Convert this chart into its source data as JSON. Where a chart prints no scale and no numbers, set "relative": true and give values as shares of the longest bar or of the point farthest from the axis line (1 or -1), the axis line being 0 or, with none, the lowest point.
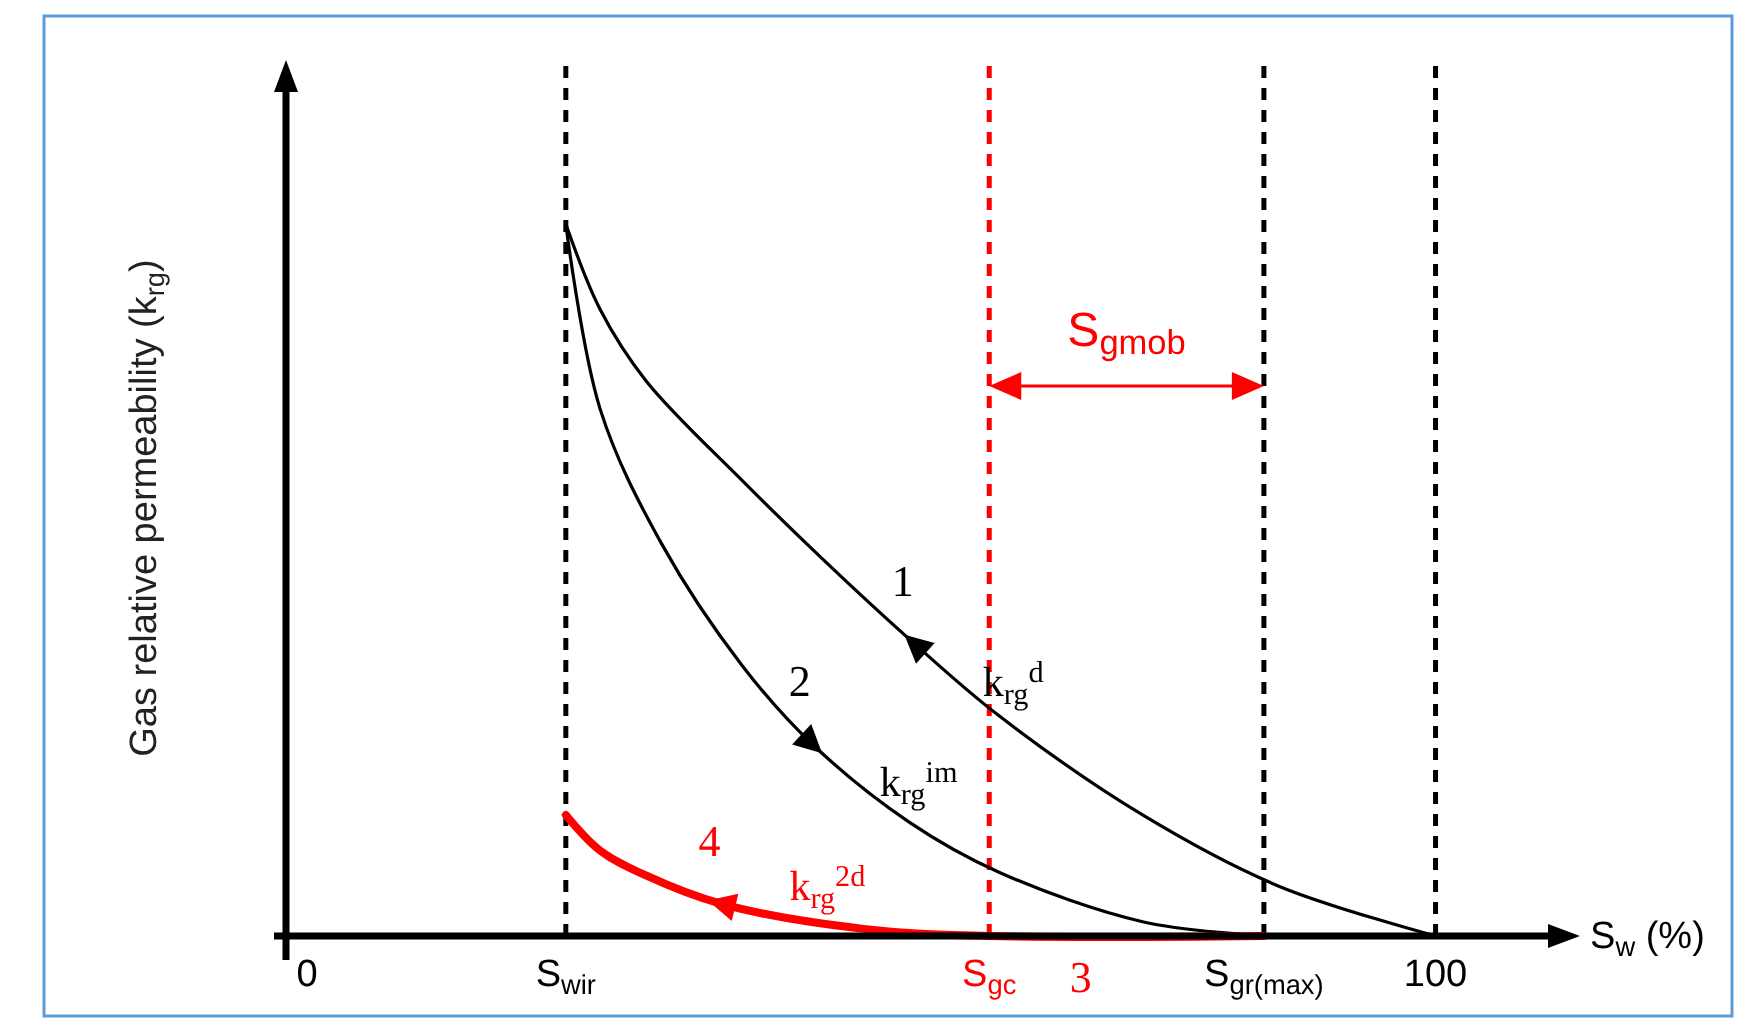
{
  "chart_data": {
    "type": "line",
    "relative": true,
    "xlabel": "S$_{w}$ (%)",
    "ylabel": "Gas relative permeability (k$_{rg}$)",
    "xlim": [
      -1.5,
      110
    ],
    "xticks": [
      0,
      {
        "value": 24,
        "label": "S$_{wir}$"
      },
      {
        "value": 61,
        "label": "S$_{gc}$"
      },
      {
        "value": 85,
        "label": "S$_{gr(max)}$"
      },
      100
    ],
    "series": [
      {
        "name": "k$_{rg}$$^{d}$",
        "color": "#000000",
        "x": [
          100,
          86.3,
          74.4,
          61.8,
          54.5,
          46.4,
          39.4,
          31,
          27,
          24
        ],
        "values": [
          0,
          0.07,
          0.17,
          0.31,
          0.41,
          0.53,
          0.64,
          0.78,
          0.88,
          1
        ]
      },
      {
        "name": "k$_{rg}$$^{im}$",
        "color": "#000000",
        "x": [
          24,
          27,
          32.4,
          39.4,
          45.5,
          54,
          61.8,
          74.4,
          85
        ],
        "values": [
          1,
          0.74,
          0.55,
          0.38,
          0.27,
          0.16,
          0.09,
          0.02,
          0
        ]
      },
      {
        "name": "k$_{rg}$$^{2d}$",
        "color": "#ff0000",
        "x": [
          85,
          61,
          50,
          37.6,
          31,
          27,
          24
        ],
        "values": [
          0,
          0,
          0.01,
          0.045,
          0.085,
          0.12,
          0.17
        ]
      }
    ],
    "ref_lines": [
      {
        "axis": "x",
        "value": 24,
        "color": "#000000",
        "line_style": "dashed"
      },
      {
        "axis": "x",
        "value": 61,
        "color": "#ff0000",
        "line_style": "dashed"
      },
      {
        "axis": "x",
        "value": 85,
        "color": "#000000",
        "line_style": "dashed"
      },
      {
        "axis": "x",
        "value": 100,
        "color": "#000000",
        "line_style": "dashed"
      }
    ],
    "annotations": [
      "1",
      "2",
      "4",
      {
        "text": "3",
        "x": 69,
        "y": 0
      },
      "S$_{gmob}$"
    ],
    "line_style": "solid",
    "marker": "none"
  }
}
